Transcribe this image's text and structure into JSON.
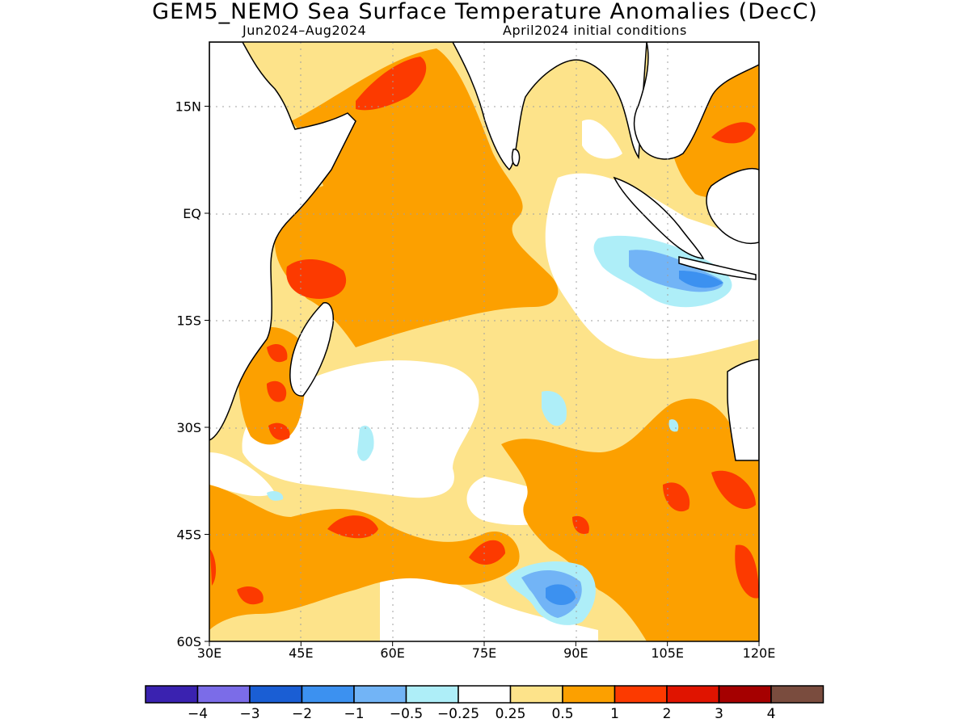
{
  "title": "GEM5_NEMO Sea Surface Temperature Anomalies (DecC)",
  "subtitle_left": "Jun2024–Aug2024",
  "subtitle_right": "April2024 initial conditions",
  "map": {
    "lon_range": [
      30,
      120
    ],
    "lat_range": [
      -60,
      24
    ],
    "x_ticks": [
      {
        "value": 30,
        "label": "30E"
      },
      {
        "value": 45,
        "label": "45E"
      },
      {
        "value": 60,
        "label": "60E"
      },
      {
        "value": 75,
        "label": "75E"
      },
      {
        "value": 90,
        "label": "90E"
      },
      {
        "value": 105,
        "label": "105E"
      },
      {
        "value": 120,
        "label": "120E"
      }
    ],
    "y_ticks": [
      {
        "value": 15,
        "label": "15N"
      },
      {
        "value": 0,
        "label": "EQ"
      },
      {
        "value": -15,
        "label": "15S"
      },
      {
        "value": -30,
        "label": "30S"
      },
      {
        "value": -45,
        "label": "45S"
      },
      {
        "value": -60,
        "label": "60S"
      }
    ],
    "grid": true
  },
  "colorbar": {
    "colors": [
      "#3a22b0",
      "#7b6ce8",
      "#1a5ed4",
      "#3c91f0",
      "#72b4f6",
      "#aeeef8",
      "#ffffff",
      "#fde38a",
      "#fca000",
      "#fc3a00",
      "#e01400",
      "#a50000",
      "#7a4c3e"
    ],
    "labels": [
      "−4",
      "−3",
      "−2",
      "−1",
      "−0.5",
      "−0.25",
      "0.25",
      "0.5",
      "1",
      "2",
      "3",
      "4"
    ]
  }
}
